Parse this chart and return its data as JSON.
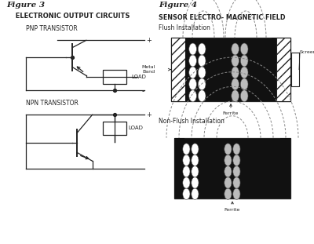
{
  "fig3_title": "Figure 3",
  "fig3_subtitle": "  ELECTRONIC OUTPUT CIRCUITS",
  "fig4_title": "Figure 4",
  "fig4_subtitle": "SENSOR ELECTRO- MAGNETIC FIELD",
  "pnp_label": "PNP TRANSISTOR",
  "npn_label": "NPN TRANSISTOR",
  "flush_label": "Flush Installation",
  "non_flush_label": "Non-Flush Installation",
  "ferrite_label": "Ferrite",
  "screen_label": "Screen",
  "metal_band_label": "Metal\nBand",
  "load_label": "LOAD",
  "line_color": "#222222",
  "sensor_bg": "#111111",
  "circle_fill_left": "#ffffff",
  "circle_fill_right": "#bbbbbb",
  "hatch_color": "#555555",
  "arc_color": "#777777"
}
